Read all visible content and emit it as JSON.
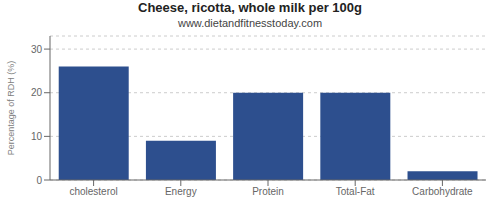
{
  "chart_data": {
    "type": "bar",
    "title": "Cheese, ricotta, whole milk per 100g",
    "subtitle": "www.dietandfitnesstoday.com",
    "categories": [
      "cholesterol",
      "Energy",
      "Protein",
      "Total-Fat",
      "Carbohydrate"
    ],
    "values": [
      26,
      9,
      20,
      20,
      2
    ],
    "color": "#2d4f8e",
    "ylabel": "Percentage of RDH (%)",
    "ylim": [
      0,
      33
    ],
    "yticks": [
      0,
      10,
      20,
      30
    ],
    "grid": true
  }
}
